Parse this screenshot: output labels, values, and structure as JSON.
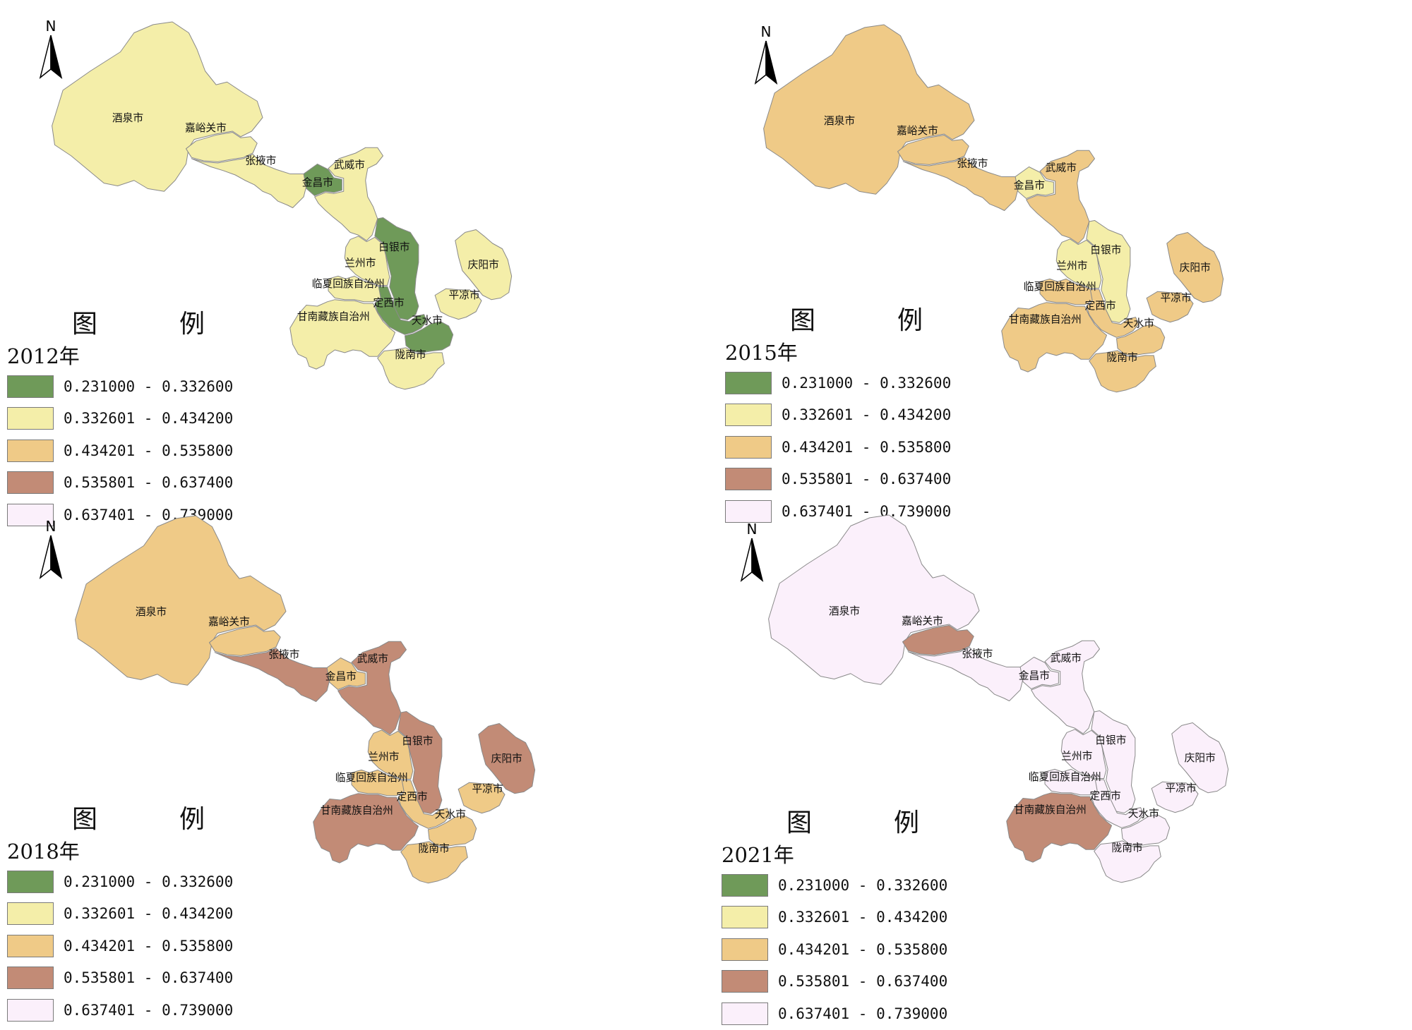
{
  "colors": {
    "c1": "#6f9a59",
    "c2": "#f4eea9",
    "c3": "#efca87",
    "c4": "#c28b76",
    "c5": "#fbf0fb",
    "border": "#8a8a8a"
  },
  "legend": {
    "title": "图　例",
    "ranges": [
      {
        "label": "0.231000 - 0.332600",
        "cls": "c1"
      },
      {
        "label": "0.332601 - 0.434200",
        "cls": "c2"
      },
      {
        "label": "0.434201 - 0.535800",
        "cls": "c3"
      },
      {
        "label": "0.535801 - 0.637400",
        "cls": "c4"
      },
      {
        "label": "0.637401 - 0.739000",
        "cls": "c5"
      }
    ]
  },
  "north_arrow_label": "N",
  "maps": [
    {
      "year": "2012年",
      "regions": [
        {
          "name": "酒泉市",
          "cls": "c2"
        },
        {
          "name": "嘉峪关市",
          "cls": "c2"
        },
        {
          "name": "张掖市",
          "cls": "c2"
        },
        {
          "name": "金昌市",
          "cls": "c1"
        },
        {
          "name": "武威市",
          "cls": "c2"
        },
        {
          "name": "白银市",
          "cls": "c1"
        },
        {
          "name": "兰州市",
          "cls": "c2"
        },
        {
          "name": "临夏回族自治州",
          "cls": "c2"
        },
        {
          "name": "定西市",
          "cls": "c1"
        },
        {
          "name": "甘南藏族自治州",
          "cls": "c2"
        },
        {
          "name": "天水市",
          "cls": "c1"
        },
        {
          "name": "庆阳市",
          "cls": "c2"
        },
        {
          "name": "平凉市",
          "cls": "c2"
        },
        {
          "name": "陇南市",
          "cls": "c2"
        }
      ]
    },
    {
      "year": "2015年",
      "regions": [
        {
          "name": "酒泉市",
          "cls": "c3"
        },
        {
          "name": "嘉峪关市",
          "cls": "c3"
        },
        {
          "name": "张掖市",
          "cls": "c3"
        },
        {
          "name": "金昌市",
          "cls": "c2"
        },
        {
          "name": "武威市",
          "cls": "c3"
        },
        {
          "name": "白银市",
          "cls": "c2"
        },
        {
          "name": "兰州市",
          "cls": "c2"
        },
        {
          "name": "临夏回族自治州",
          "cls": "c3"
        },
        {
          "name": "定西市",
          "cls": "c3"
        },
        {
          "name": "甘南藏族自治州",
          "cls": "c3"
        },
        {
          "name": "天水市",
          "cls": "c3"
        },
        {
          "name": "庆阳市",
          "cls": "c3"
        },
        {
          "name": "平凉市",
          "cls": "c3"
        },
        {
          "name": "陇南市",
          "cls": "c3"
        }
      ]
    },
    {
      "year": "2018年",
      "regions": [
        {
          "name": "酒泉市",
          "cls": "c3"
        },
        {
          "name": "嘉峪关市",
          "cls": "c3"
        },
        {
          "name": "张掖市",
          "cls": "c4"
        },
        {
          "name": "金昌市",
          "cls": "c3"
        },
        {
          "name": "武威市",
          "cls": "c4"
        },
        {
          "name": "白银市",
          "cls": "c4"
        },
        {
          "name": "兰州市",
          "cls": "c3"
        },
        {
          "name": "临夏回族自治州",
          "cls": "c3"
        },
        {
          "name": "定西市",
          "cls": "c3"
        },
        {
          "name": "甘南藏族自治州",
          "cls": "c4"
        },
        {
          "name": "天水市",
          "cls": "c3"
        },
        {
          "name": "庆阳市",
          "cls": "c4"
        },
        {
          "name": "平凉市",
          "cls": "c3"
        },
        {
          "name": "陇南市",
          "cls": "c3"
        }
      ]
    },
    {
      "year": "2021年",
      "regions": [
        {
          "name": "酒泉市",
          "cls": "c5"
        },
        {
          "name": "嘉峪关市",
          "cls": "c4"
        },
        {
          "name": "张掖市",
          "cls": "c5"
        },
        {
          "name": "金昌市",
          "cls": "c5"
        },
        {
          "name": "武威市",
          "cls": "c5"
        },
        {
          "name": "白银市",
          "cls": "c5"
        },
        {
          "name": "兰州市",
          "cls": "c5"
        },
        {
          "name": "临夏回族自治州",
          "cls": "c5"
        },
        {
          "name": "定西市",
          "cls": "c5"
        },
        {
          "name": "甘南藏族自治州",
          "cls": "c4"
        },
        {
          "name": "天水市",
          "cls": "c5"
        },
        {
          "name": "庆阳市",
          "cls": "c5"
        },
        {
          "name": "平凉市",
          "cls": "c5"
        },
        {
          "name": "陇南市",
          "cls": "c5"
        }
      ]
    }
  ]
}
